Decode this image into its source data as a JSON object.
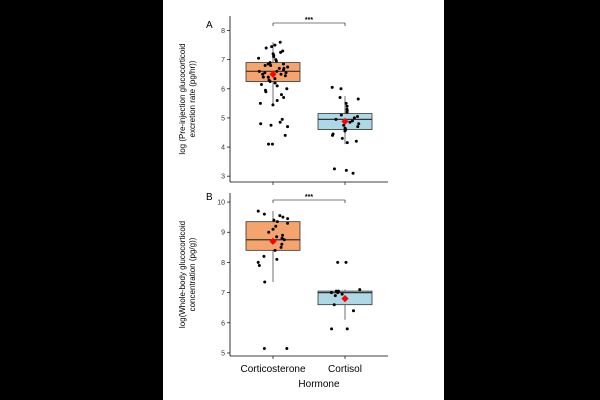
{
  "figure": {
    "xlabel": "Hormone",
    "colors": {
      "Corticosterone": "#f4a46c",
      "Cortisol": "#add8e6",
      "mean": "#ff0000",
      "points": "#000000"
    }
  },
  "chart_data": [
    {
      "type": "box",
      "panel_label": "A",
      "title": "",
      "ylabel_lines": [
        "log (Pre-injection glucocorticoid",
        "excretion rate (pg/hr))"
      ],
      "xlabel": "",
      "categories": [
        "Corticosterone",
        "Cortisol"
      ],
      "ylim": [
        2.8,
        8.5
      ],
      "yticks": [
        3,
        4,
        5,
        6,
        7,
        8
      ],
      "significance": "***",
      "boxes": [
        {
          "name": "Corticosterone",
          "q1": 6.25,
          "median": 6.6,
          "q3": 6.9,
          "whisker_low": 5.4,
          "whisker_high": 7.6,
          "mean": 6.5
        },
        {
          "name": "Cortisol",
          "q1": 4.6,
          "median": 4.95,
          "q3": 5.15,
          "whisker_low": 4.1,
          "whisker_high": 5.75,
          "mean": 4.88
        }
      ],
      "points": [
        {
          "name": "Corticosterone",
          "values": [
            7.6,
            7.5,
            7.45,
            7.4,
            7.3,
            7.25,
            7.2,
            7.15,
            7.1,
            7.05,
            7.0,
            6.95,
            6.9,
            6.85,
            6.85,
            6.8,
            6.8,
            6.75,
            6.7,
            6.7,
            6.65,
            6.6,
            6.6,
            6.55,
            6.55,
            6.5,
            6.5,
            6.45,
            6.4,
            6.4,
            6.35,
            6.3,
            6.25,
            6.2,
            6.15,
            6.1,
            6.0,
            5.95,
            5.9,
            5.8,
            5.7,
            5.6,
            5.5,
            5.45,
            4.95,
            4.85,
            4.8,
            4.75,
            4.7,
            4.4,
            4.1,
            4.1
          ]
        },
        {
          "name": "Cortisol",
          "values": [
            6.05,
            6.0,
            5.7,
            5.65,
            5.5,
            5.4,
            5.3,
            5.25,
            5.2,
            5.1,
            5.05,
            5.0,
            4.95,
            4.9,
            4.85,
            4.8,
            4.75,
            4.7,
            4.65,
            4.6,
            4.55,
            4.45,
            4.4,
            4.3,
            4.2,
            4.15,
            3.25,
            3.2,
            3.1
          ]
        }
      ]
    },
    {
      "type": "box",
      "panel_label": "B",
      "title": "",
      "ylabel_lines": [
        "log(Whole-body glucocorticoid",
        "concentration (pg/g))"
      ],
      "xlabel": "Hormone",
      "categories": [
        "Corticosterone",
        "Cortisol"
      ],
      "ylim": [
        4.9,
        10.3
      ],
      "yticks": [
        5,
        6,
        7,
        8,
        9,
        10
      ],
      "significance": "***",
      "boxes": [
        {
          "name": "Corticosterone",
          "q1": 8.4,
          "median": 8.75,
          "q3": 9.35,
          "whisker_low": 7.35,
          "whisker_high": 9.7,
          "mean": 8.7
        },
        {
          "name": "Cortisol",
          "q1": 6.6,
          "median": 7.0,
          "q3": 7.05,
          "whisker_low": 6.1,
          "whisker_high": 7.1,
          "mean": 6.8
        }
      ],
      "points": [
        {
          "name": "Corticosterone",
          "values": [
            9.7,
            9.6,
            9.55,
            9.5,
            9.45,
            9.4,
            9.35,
            9.3,
            9.2,
            9.1,
            9.0,
            8.9,
            8.85,
            8.8,
            8.75,
            8.7,
            8.6,
            8.5,
            8.4,
            8.2,
            8.1,
            8.0,
            7.9,
            7.35,
            5.15,
            5.15
          ]
        },
        {
          "name": "Cortisol",
          "values": [
            8.0,
            8.0,
            7.1,
            7.05,
            7.05,
            7.0,
            7.0,
            6.95,
            6.9,
            6.6,
            6.4,
            5.8,
            5.8
          ]
        }
      ]
    }
  ]
}
